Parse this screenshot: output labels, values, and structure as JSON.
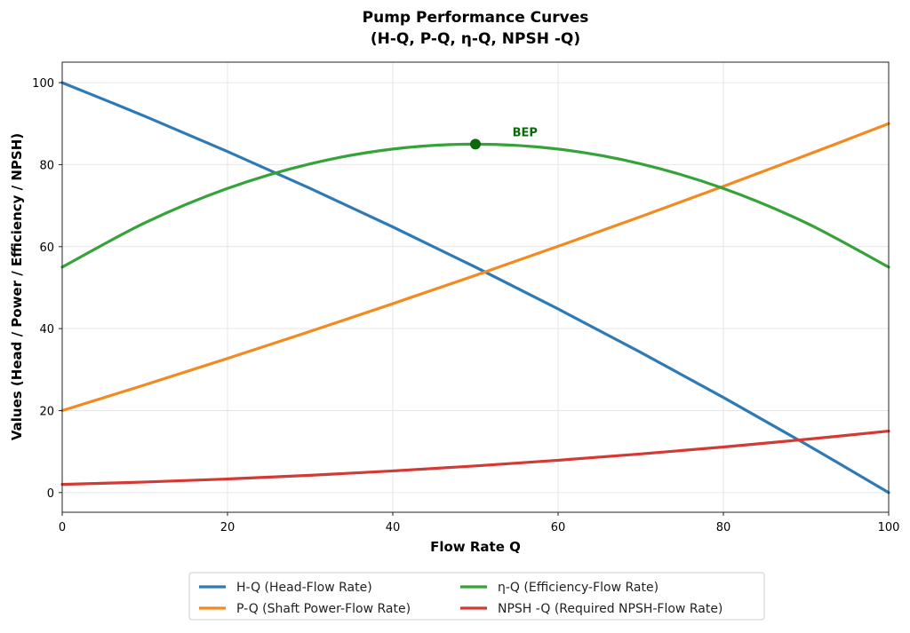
{
  "chart_data": {
    "type": "line",
    "title_line1": "Pump Performance Curves",
    "title_line2": "(H-Q, P-Q, η-Q, NPSH -Q)",
    "xlabel": "Flow Rate Q",
    "ylabel": "Values (Head / Power / Efficiency / NPSH)",
    "xlim": [
      0,
      100
    ],
    "ylim": [
      -4.8,
      105
    ],
    "xticks": [
      0,
      20,
      40,
      60,
      80,
      100
    ],
    "yticks": [
      0,
      20,
      40,
      60,
      80,
      100
    ],
    "grid": true,
    "legend_placement": "bottom-center-outside",
    "x": [
      0,
      10,
      20,
      30,
      40,
      50,
      60,
      70,
      80,
      90,
      100
    ],
    "series": [
      {
        "name": "H-Q (Head-Flow Rate)",
        "color": "#2e7ab6",
        "values": [
          100,
          91.8,
          83.2,
          74.2,
          64.8,
          55,
          44.8,
          34.2,
          23.2,
          11.8,
          0
        ]
      },
      {
        "name": "P-Q (Shaft Power-Flow Rate)",
        "color": "#f28a1f",
        "values": [
          20,
          26.28,
          32.72,
          39.32,
          46.08,
          53,
          60.08,
          67.32,
          74.72,
          82.28,
          90
        ]
      },
      {
        "name": "η-Q (Efficiency-Flow Rate)",
        "color": "#36a23a",
        "values": [
          55,
          65.8,
          74.2,
          80.2,
          83.8,
          85,
          83.8,
          80.2,
          74.2,
          65.8,
          55
        ]
      },
      {
        "name": "NPSH -Q (Required NPSH-Flow Rate)",
        "color": "#d23a33",
        "values": [
          2,
          2.58,
          3.32,
          4.22,
          5.28,
          6.5,
          7.88,
          9.42,
          11.12,
          12.98,
          15
        ]
      }
    ],
    "annotations": [
      {
        "text": "BEP",
        "x": 50,
        "y": 85,
        "label_x": 56,
        "label_y": 88,
        "color": "#0a6a0a"
      }
    ]
  }
}
